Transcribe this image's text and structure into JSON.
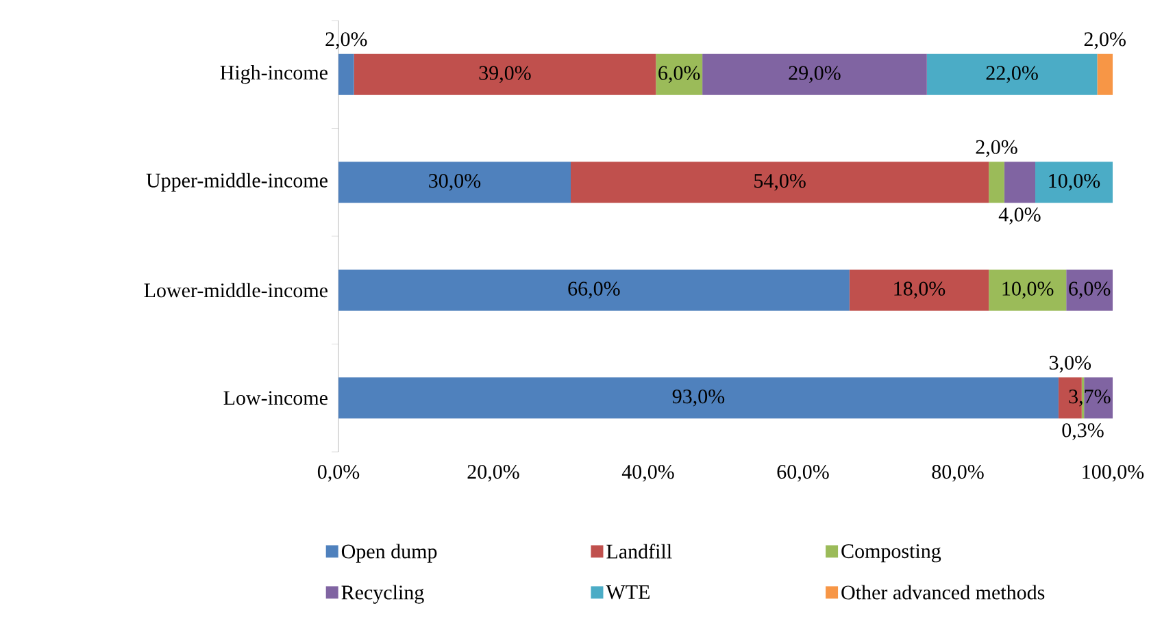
{
  "chart_data": {
    "type": "bar",
    "orientation": "horizontal",
    "stacked": true,
    "categories": [
      "High-income",
      "Upper-middle-income",
      "Lower-middle-income",
      "Low-income"
    ],
    "series": [
      {
        "name": "Open dump",
        "color": "#4f81bd",
        "values": [
          2,
          30,
          66,
          93
        ],
        "value_labels": [
          "2,0%",
          "30,0%",
          "66,0%",
          "93,0%"
        ]
      },
      {
        "name": "Landfill",
        "color": "#c0504d",
        "values": [
          39,
          54,
          18,
          3
        ],
        "value_labels": [
          "39,0%",
          "54,0%",
          "18,0%",
          "3,0%"
        ]
      },
      {
        "name": "Composting",
        "color": "#9bbb59",
        "values": [
          6,
          2,
          10,
          0.3
        ],
        "value_labels": [
          "6,0%",
          "2,0%",
          "10,0%",
          "0,3%"
        ]
      },
      {
        "name": "Recycling",
        "color": "#8064a2",
        "values": [
          29,
          4,
          6,
          3.7
        ],
        "value_labels": [
          "29,0%",
          "4,0%",
          "6,0%",
          "3,7%"
        ]
      },
      {
        "name": "WTE",
        "color": "#4bacc6",
        "values": [
          22,
          10,
          0,
          0
        ],
        "value_labels": [
          "22,0%",
          "10,0%",
          null,
          null
        ]
      },
      {
        "name": "Other advanced methods",
        "color": "#f79646",
        "values": [
          2,
          0,
          0,
          0
        ],
        "value_labels": [
          "2,0%",
          null,
          null,
          null
        ]
      }
    ],
    "xlim": [
      0,
      100
    ],
    "xticks": [
      {
        "value": 0,
        "label": "0,0%"
      },
      {
        "value": 20,
        "label": "20,0%"
      },
      {
        "value": 40,
        "label": "40,0%"
      },
      {
        "value": 60,
        "label": "60,0%"
      },
      {
        "value": 80,
        "label": "80,0%"
      },
      {
        "value": 100,
        "label": "100,0%"
      }
    ],
    "grid": false,
    "legend": "bottom"
  }
}
